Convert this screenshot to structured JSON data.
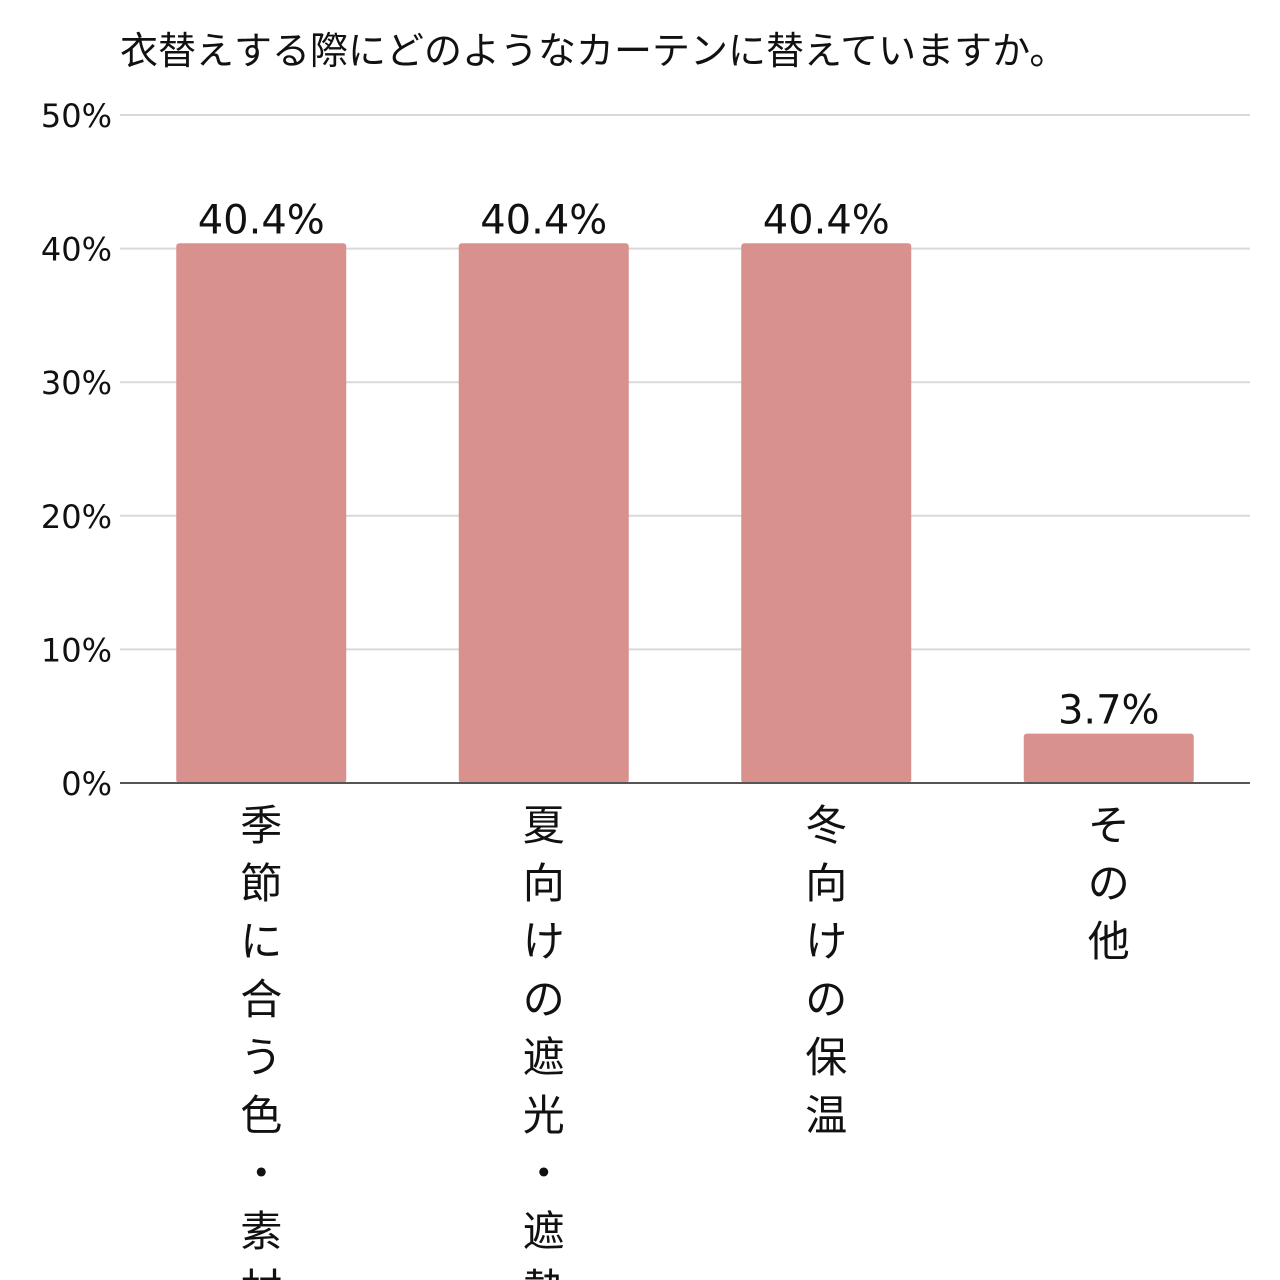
{
  "chart_data": {
    "type": "bar",
    "title": "衣替えする際にどのようなカーテンに替えていますか。",
    "categories": [
      "季節に合う色・素材",
      "夏向けの遮光・遮熱",
      "冬向けの保温",
      "その他"
    ],
    "values": [
      40.4,
      40.4,
      40.4,
      3.7
    ],
    "data_labels": [
      "40.4%",
      "40.4%",
      "40.4%",
      "3.7%"
    ],
    "y_ticks": [
      0,
      10,
      20,
      30,
      40,
      50
    ],
    "y_tick_labels": [
      "0%",
      "10%",
      "20%",
      "30%",
      "40%",
      "50%"
    ],
    "ylim": [
      0,
      50
    ],
    "grid": true,
    "legend": "none",
    "bar_color": "#d9918d"
  }
}
